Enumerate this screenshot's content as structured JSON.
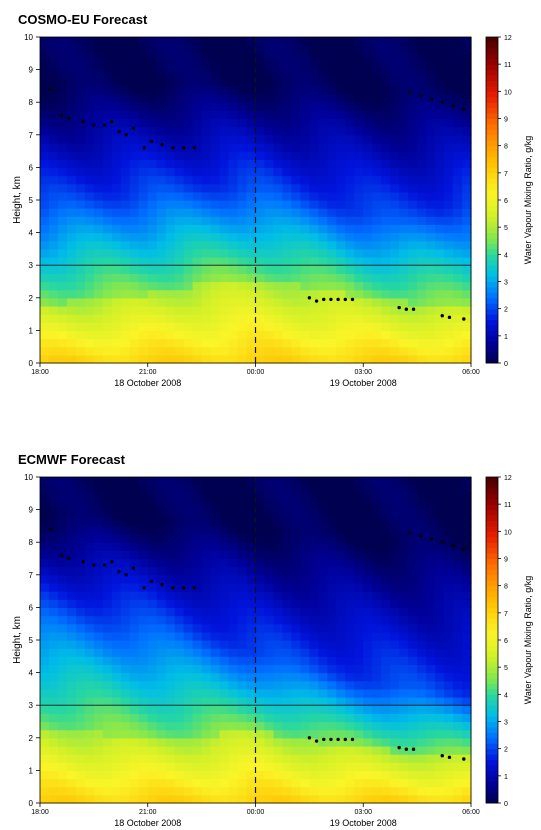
{
  "chart_data": [
    {
      "type": "heatmap",
      "title": "COSMO-EU Forecast",
      "ylabel": "Height, km",
      "ylim": [
        0,
        10
      ],
      "yticks": [
        "0",
        "1",
        "2",
        "3",
        "4",
        "5",
        "6",
        "7",
        "8",
        "9",
        "10"
      ],
      "xlim_hours": [
        18,
        30
      ],
      "xticks": [
        "18:00",
        "21:00",
        "00:00",
        "03:00",
        "06:00"
      ],
      "date_labels": [
        {
          "text": "18 October 2008",
          "hour": 21
        },
        {
          "text": "19 October 2008",
          "hour": 27
        }
      ],
      "colorbar": {
        "label": "Water Vapour Mixing Ratio, g/kg",
        "min": 0,
        "max": 12,
        "ticks": [
          "0",
          "1",
          "2",
          "3",
          "4",
          "5",
          "6",
          "7",
          "8",
          "9",
          "10",
          "11",
          "12"
        ]
      },
      "reference_line_height_km": 3,
      "midnight_marker_hour": 24,
      "profile": {
        "hour": [
          18,
          19,
          20,
          21,
          22,
          23,
          24,
          25,
          26,
          27,
          28,
          29,
          30
        ],
        "surface": [
          7,
          7,
          7,
          7,
          7,
          7,
          7,
          7,
          7,
          7,
          7,
          7,
          7
        ],
        "top_of_moist_layer_km": [
          1.8,
          1.9,
          2.0,
          2.1,
          2.3,
          2.5,
          2.6,
          2.4,
          2.2,
          2.0,
          1.9,
          1.8,
          1.7
        ],
        "mid_layer_km": [
          4.8,
          5.0,
          5.1,
          5.2,
          5.3,
          5.4,
          5.4,
          5.1,
          4.9,
          4.6,
          4.4,
          4.6,
          4.9
        ]
      },
      "cloud_base_points": [
        {
          "x": 18.3,
          "y": 8.4
        },
        {
          "x": 18.6,
          "y": 7.6
        },
        {
          "x": 18.8,
          "y": 7.5
        },
        {
          "x": 19.2,
          "y": 7.4
        },
        {
          "x": 19.5,
          "y": 7.3
        },
        {
          "x": 19.8,
          "y": 7.3
        },
        {
          "x": 20.0,
          "y": 7.4
        },
        {
          "x": 20.2,
          "y": 7.1
        },
        {
          "x": 20.4,
          "y": 7.0
        },
        {
          "x": 20.6,
          "y": 7.2
        },
        {
          "x": 20.9,
          "y": 6.6
        },
        {
          "x": 21.1,
          "y": 6.8
        },
        {
          "x": 21.4,
          "y": 6.7
        },
        {
          "x": 21.7,
          "y": 6.6
        },
        {
          "x": 22.0,
          "y": 6.6
        },
        {
          "x": 22.3,
          "y": 6.6
        },
        {
          "x": 25.5,
          "y": 2.0
        },
        {
          "x": 25.7,
          "y": 1.9
        },
        {
          "x": 25.9,
          "y": 1.95
        },
        {
          "x": 26.1,
          "y": 1.95
        },
        {
          "x": 26.3,
          "y": 1.95
        },
        {
          "x": 26.5,
          "y": 1.95
        },
        {
          "x": 26.7,
          "y": 1.95
        },
        {
          "x": 28.0,
          "y": 1.7
        },
        {
          "x": 28.2,
          "y": 1.65
        },
        {
          "x": 28.4,
          "y": 1.65
        },
        {
          "x": 29.2,
          "y": 1.45
        },
        {
          "x": 29.4,
          "y": 1.4
        },
        {
          "x": 29.8,
          "y": 1.35
        },
        {
          "x": 28.3,
          "y": 8.3
        },
        {
          "x": 28.6,
          "y": 8.2
        },
        {
          "x": 28.9,
          "y": 8.1
        },
        {
          "x": 29.2,
          "y": 8.0
        },
        {
          "x": 29.5,
          "y": 7.9
        },
        {
          "x": 29.8,
          "y": 7.8
        }
      ]
    },
    {
      "type": "heatmap",
      "title": "ECMWF Forecast",
      "ylabel": "Height, km",
      "ylim": [
        0,
        10
      ],
      "yticks": [
        "0",
        "1",
        "2",
        "3",
        "4",
        "5",
        "6",
        "7",
        "8",
        "9",
        "10"
      ],
      "xlim_hours": [
        18,
        30
      ],
      "xticks": [
        "18:00",
        "21:00",
        "00:00",
        "03:00",
        "06:00"
      ],
      "date_labels": [
        {
          "text": "18 October 2008",
          "hour": 21
        },
        {
          "text": "19 October 2008",
          "hour": 27
        }
      ],
      "colorbar": {
        "label": "Water Vapour Mixing Ratio, g/kg",
        "min": 0,
        "max": 12,
        "ticks": [
          "0",
          "1",
          "2",
          "3",
          "4",
          "5",
          "6",
          "7",
          "8",
          "9",
          "10",
          "11",
          "12"
        ]
      },
      "reference_line_height_km": 3,
      "midnight_marker_hour": 24,
      "profile": {
        "hour": [
          18,
          19,
          20,
          21,
          22,
          23,
          24,
          25,
          26,
          27,
          28,
          29,
          30
        ],
        "surface": [
          7,
          7,
          7,
          7,
          7,
          7,
          7,
          7,
          7,
          7,
          7,
          7,
          7
        ],
        "top_of_moist_layer_km": [
          2.3,
          2.2,
          2.1,
          2.0,
          2.0,
          2.1,
          2.3,
          2.0,
          1.8,
          1.7,
          1.6,
          1.5,
          1.4
        ],
        "mid_layer_km": [
          6.0,
          5.9,
          5.8,
          5.6,
          5.3,
          5.0,
          4.6,
          4.3,
          4.0,
          3.8,
          3.6,
          3.4,
          3.3
        ]
      },
      "cloud_base_points": [
        {
          "x": 18.3,
          "y": 8.4
        },
        {
          "x": 18.6,
          "y": 7.6
        },
        {
          "x": 18.8,
          "y": 7.5
        },
        {
          "x": 19.2,
          "y": 7.4
        },
        {
          "x": 19.5,
          "y": 7.3
        },
        {
          "x": 19.8,
          "y": 7.3
        },
        {
          "x": 20.0,
          "y": 7.4
        },
        {
          "x": 20.2,
          "y": 7.1
        },
        {
          "x": 20.4,
          "y": 7.0
        },
        {
          "x": 20.6,
          "y": 7.2
        },
        {
          "x": 20.9,
          "y": 6.6
        },
        {
          "x": 21.1,
          "y": 6.8
        },
        {
          "x": 21.4,
          "y": 6.7
        },
        {
          "x": 21.7,
          "y": 6.6
        },
        {
          "x": 22.0,
          "y": 6.6
        },
        {
          "x": 22.3,
          "y": 6.6
        },
        {
          "x": 25.5,
          "y": 2.0
        },
        {
          "x": 25.7,
          "y": 1.9
        },
        {
          "x": 25.9,
          "y": 1.95
        },
        {
          "x": 26.1,
          "y": 1.95
        },
        {
          "x": 26.3,
          "y": 1.95
        },
        {
          "x": 26.5,
          "y": 1.95
        },
        {
          "x": 26.7,
          "y": 1.95
        },
        {
          "x": 28.0,
          "y": 1.7
        },
        {
          "x": 28.2,
          "y": 1.65
        },
        {
          "x": 28.4,
          "y": 1.65
        },
        {
          "x": 29.2,
          "y": 1.45
        },
        {
          "x": 29.4,
          "y": 1.4
        },
        {
          "x": 29.8,
          "y": 1.35
        },
        {
          "x": 28.3,
          "y": 8.3
        },
        {
          "x": 28.6,
          "y": 8.2
        },
        {
          "x": 28.9,
          "y": 8.1
        },
        {
          "x": 29.2,
          "y": 8.0
        },
        {
          "x": 29.5,
          "y": 7.9
        },
        {
          "x": 29.8,
          "y": 7.8
        }
      ]
    }
  ]
}
